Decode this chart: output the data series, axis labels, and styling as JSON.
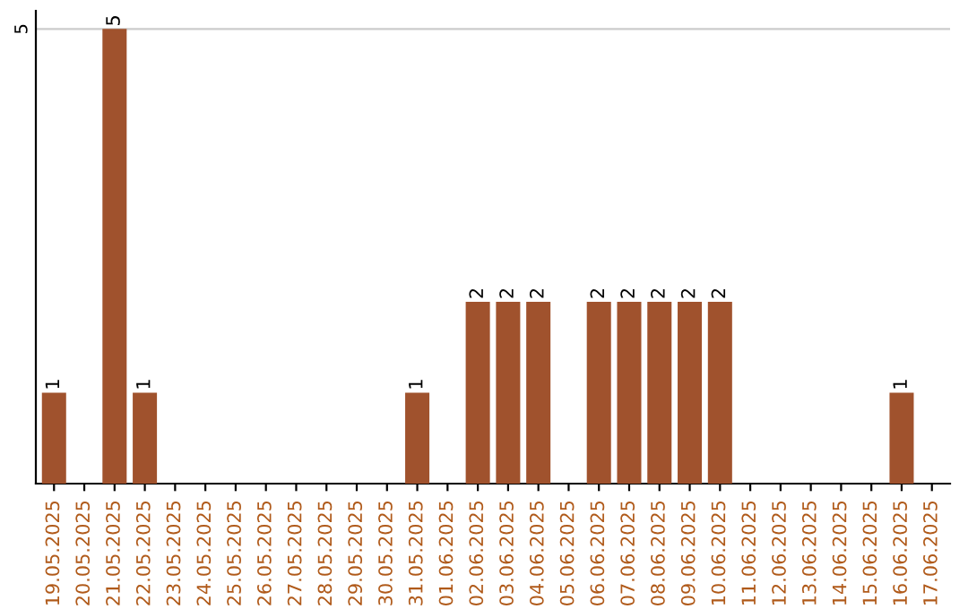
{
  "chart_data": {
    "type": "bar",
    "categories": [
      "19.05.2025",
      "20.05.2025",
      "21.05.2025",
      "22.05.2025",
      "23.05.2025",
      "24.05.2025",
      "25.05.2025",
      "26.05.2025",
      "27.05.2025",
      "28.05.2025",
      "29.05.2025",
      "30.05.2025",
      "31.05.2025",
      "01.06.2025",
      "02.06.2025",
      "03.06.2025",
      "04.06.2025",
      "05.06.2025",
      "06.06.2025",
      "07.06.2025",
      "08.06.2025",
      "09.06.2025",
      "10.06.2025",
      "11.06.2025",
      "12.06.2025",
      "13.06.2025",
      "14.06.2025",
      "15.06.2025",
      "16.06.2025",
      "17.06.2025"
    ],
    "values": [
      1,
      0,
      5,
      1,
      0,
      0,
      0,
      0,
      0,
      0,
      0,
      0,
      1,
      0,
      2,
      2,
      2,
      0,
      2,
      2,
      2,
      2,
      2,
      0,
      0,
      0,
      0,
      0,
      1,
      0
    ],
    "value_labels": [
      "1",
      null,
      "5",
      "1",
      null,
      null,
      null,
      null,
      null,
      null,
      null,
      null,
      "1",
      null,
      "2",
      "2",
      "2",
      null,
      "2",
      "2",
      "2",
      "2",
      "2",
      null,
      null,
      null,
      null,
      null,
      "1",
      null
    ],
    "color": "#a0522d",
    "ylim": [
      0,
      5.2
    ],
    "yticks": [
      5
    ],
    "grid": "y",
    "legend": false
  }
}
